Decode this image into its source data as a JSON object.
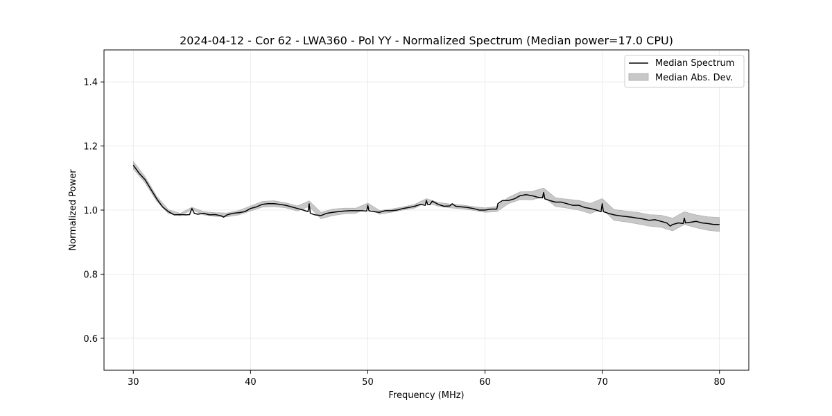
{
  "chart_data": {
    "type": "line",
    "title": "2024-04-12 - Cor 62 - LWA360 - Pol YY - Normalized Spectrum (Median power=17.0 CPU)",
    "xlabel": "Frequency (MHz)",
    "ylabel": "Normalized Power",
    "xlim": [
      27.5,
      82.5
    ],
    "ylim": [
      0.5,
      1.5
    ],
    "xticks": [
      30,
      40,
      50,
      60,
      70,
      80
    ],
    "yticks": [
      0.6,
      0.8,
      1.0,
      1.2,
      1.4
    ],
    "xtick_labels": [
      "30",
      "40",
      "50",
      "60",
      "70",
      "80"
    ],
    "ytick_labels": [
      "0.6",
      "0.8",
      "1.0",
      "1.2",
      "1.4"
    ],
    "grid": true,
    "legend_position": "top-right",
    "legend": [
      {
        "label": "Median Spectrum",
        "kind": "line",
        "color": "#000000"
      },
      {
        "label": "Median Abs. Dev.",
        "kind": "band",
        "color": "#c8c8c8"
      }
    ],
    "series": [
      {
        "name": "Median Spectrum",
        "x": [
          30,
          30.5,
          31,
          31.5,
          32,
          32.5,
          33,
          33.5,
          34,
          34.5,
          34.8,
          35,
          35.2,
          35.5,
          36,
          36.5,
          37,
          37.5,
          37.7,
          38,
          38.5,
          39,
          39.5,
          40,
          40.5,
          41,
          41.5,
          42,
          42.5,
          43,
          43.5,
          44,
          44.5,
          44.9,
          45,
          45.1,
          45.5,
          46,
          46.5,
          47,
          47.5,
          48,
          48.5,
          49,
          49.5,
          49.9,
          50,
          50.1,
          50.5,
          51,
          51.5,
          52,
          52.5,
          53,
          53.5,
          54,
          54.5,
          54.9,
          55,
          55.1,
          55.3,
          55.5,
          56,
          56.5,
          57,
          57.2,
          57.5,
          58,
          58.5,
          59,
          59.5,
          60,
          60.5,
          61,
          61.1,
          61.5,
          62,
          62.5,
          63,
          63.5,
          64,
          64.5,
          64.9,
          65,
          65.1,
          65.5,
          66,
          66.5,
          67,
          67.5,
          68,
          68.5,
          69,
          69.5,
          69.9,
          70,
          70.1,
          70.5,
          71,
          71.5,
          72,
          72.5,
          73,
          73.5,
          74,
          74.5,
          75,
          75.5,
          75.8,
          76,
          76.5,
          76.9,
          77,
          77.1,
          77.5,
          78,
          78.5,
          79,
          79.5,
          80
        ],
        "values": [
          1.14,
          1.115,
          1.095,
          1.065,
          1.035,
          1.01,
          0.995,
          0.985,
          0.986,
          0.985,
          0.986,
          1.005,
          0.99,
          0.987,
          0.99,
          0.985,
          0.986,
          0.982,
          0.978,
          0.985,
          0.99,
          0.992,
          0.995,
          1.005,
          1.01,
          1.018,
          1.02,
          1.02,
          1.018,
          1.015,
          1.01,
          1.005,
          1.0,
          0.995,
          1.02,
          0.99,
          0.985,
          0.983,
          0.99,
          0.993,
          0.995,
          0.997,
          0.998,
          0.998,
          0.998,
          0.997,
          1.015,
          0.998,
          0.995,
          0.993,
          0.998,
          0.998,
          1.0,
          1.005,
          1.008,
          1.012,
          1.018,
          1.015,
          1.03,
          1.018,
          1.017,
          1.028,
          1.018,
          1.012,
          1.013,
          1.02,
          1.012,
          1.01,
          1.008,
          1.005,
          1.0,
          1.0,
          1.003,
          1.003,
          1.02,
          1.03,
          1.03,
          1.035,
          1.045,
          1.048,
          1.045,
          1.04,
          1.038,
          1.055,
          1.035,
          1.03,
          1.025,
          1.025,
          1.02,
          1.015,
          1.015,
          1.008,
          1.005,
          1.0,
          0.995,
          1.02,
          0.995,
          0.99,
          0.985,
          0.982,
          0.98,
          0.978,
          0.975,
          0.972,
          0.968,
          0.97,
          0.965,
          0.96,
          0.95,
          0.955,
          0.96,
          0.958,
          0.975,
          0.96,
          0.962,
          0.965,
          0.96,
          0.958,
          0.955,
          0.955
        ],
        "color": "#000000"
      }
    ],
    "band": {
      "name": "Median Abs. Dev.",
      "x": [
        30,
        31,
        32,
        33,
        34,
        35,
        36,
        37,
        38,
        39,
        40,
        41,
        42,
        43,
        44,
        45,
        46,
        47,
        48,
        49,
        50,
        51,
        52,
        53,
        54,
        55,
        56,
        57,
        58,
        59,
        60,
        61,
        62,
        63,
        64,
        65,
        66,
        67,
        68,
        69,
        70,
        71,
        72,
        73,
        74,
        75,
        76,
        77,
        78,
        79,
        80
      ],
      "half_width": [
        0.012,
        0.01,
        0.008,
        0.006,
        0.004,
        0.004,
        0.005,
        0.006,
        0.006,
        0.007,
        0.008,
        0.009,
        0.009,
        0.008,
        0.008,
        0.009,
        0.01,
        0.01,
        0.009,
        0.008,
        0.007,
        0.006,
        0.005,
        0.005,
        0.006,
        0.006,
        0.006,
        0.006,
        0.006,
        0.006,
        0.007,
        0.008,
        0.01,
        0.012,
        0.013,
        0.014,
        0.014,
        0.014,
        0.015,
        0.016,
        0.016,
        0.017,
        0.017,
        0.018,
        0.018,
        0.019,
        0.02,
        0.02,
        0.02,
        0.021,
        0.022
      ]
    }
  }
}
